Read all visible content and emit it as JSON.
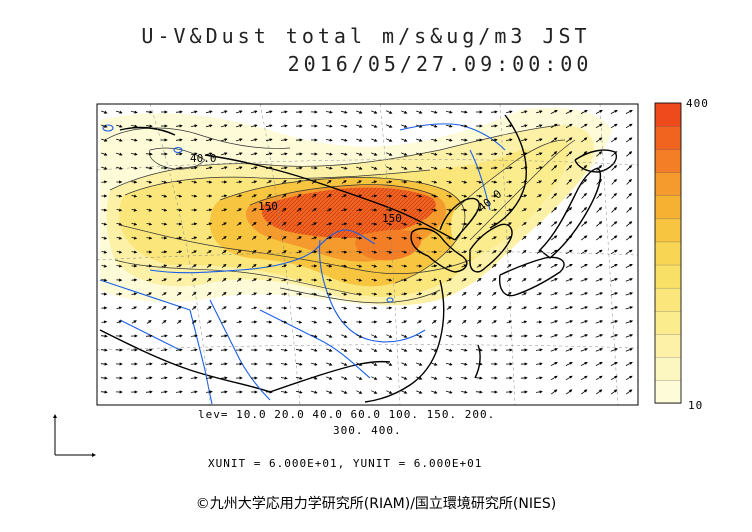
{
  "title": {
    "line1": "U-V&Dust total m/s&ug/m3 JST",
    "line2": "2016/05/27.09:00:00"
  },
  "colorbar": {
    "max_label": "400",
    "min_label": "10",
    "colors": [
      "#fdfbd8",
      "#fcf6c0",
      "#fcf1a6",
      "#fbec8e",
      "#fae67a",
      "#f8df66",
      "#f8d552",
      "#f7c53f",
      "#f6b133",
      "#f59a2c",
      "#f37e25",
      "#f06420",
      "#ee4a1c"
    ]
  },
  "contour_levels": {
    "line1": "lev= 10.0 20.0 40.0 60.0 100. 150. 200.",
    "line2": "300. 400."
  },
  "units_note": "XUNIT = 6.000E+01, YUNIT = 6.000E+01",
  "contour_labels": [
    "40.0",
    "150",
    "150",
    "40.0"
  ],
  "copyright": "©九州大学応用力学研究所(RIAM)/国立環境研究所(NIES)",
  "colors": {
    "coastline": "#000000",
    "rivers": "#1a5fe8",
    "wind_arrows": "#000000",
    "grid": "#888888"
  }
}
